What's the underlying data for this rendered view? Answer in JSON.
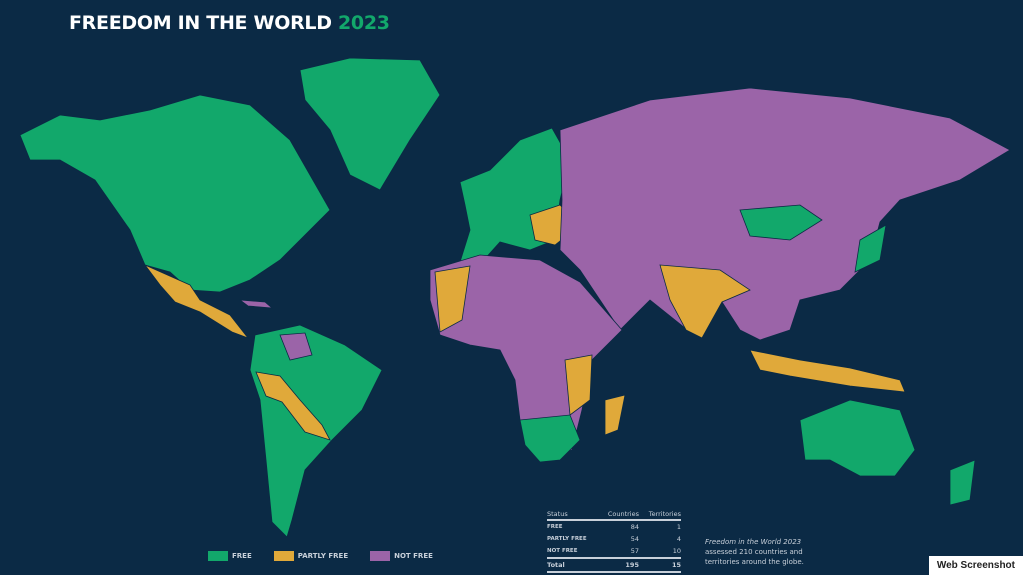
{
  "title": {
    "main": "FREEDOM IN THE WORLD",
    "year": "2023"
  },
  "colors": {
    "background": "#0b2a45",
    "free": "#12a86b",
    "partly_free": "#e0a93a",
    "not_free": "#9b64a8"
  },
  "legend": [
    {
      "label": "FREE",
      "color": "#12a86b"
    },
    {
      "label": "PARTLY FREE",
      "color": "#e0a93a"
    },
    {
      "label": "NOT FREE",
      "color": "#9b64a8"
    }
  ],
  "table": {
    "headers": [
      "Status",
      "Countries",
      "Territories"
    ],
    "rows": [
      {
        "status": "FREE",
        "countries": "84",
        "territories": "1"
      },
      {
        "status": "PARTLY FREE",
        "countries": "54",
        "territories": "4"
      },
      {
        "status": "NOT FREE",
        "countries": "57",
        "territories": "10"
      }
    ],
    "total": {
      "status": "Total",
      "countries": "195",
      "territories": "15"
    }
  },
  "note": {
    "italic": "Freedom in the World 2023",
    "text": "assessed 210 countries and territories around the globe."
  },
  "badge": "Web Screenshot"
}
